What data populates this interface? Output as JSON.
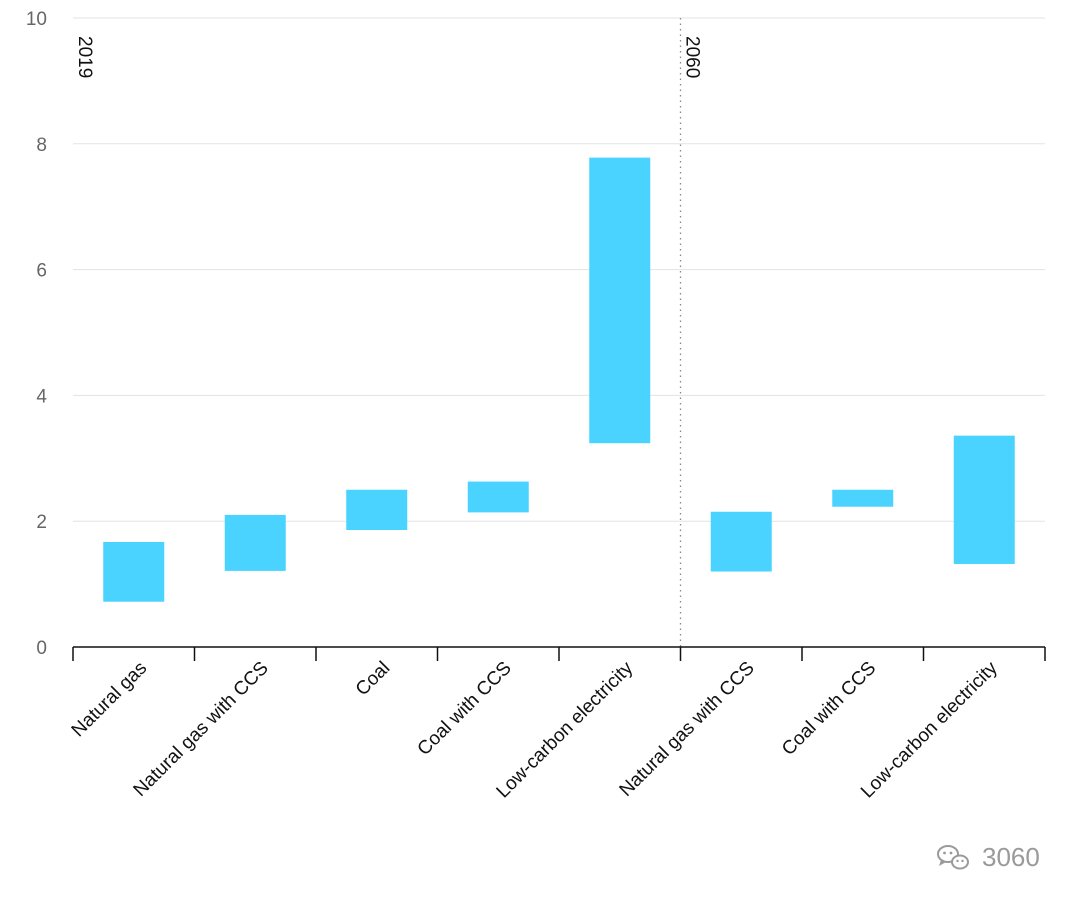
{
  "chart_data": {
    "type": "bar",
    "subtype": "floating-range",
    "categories": [
      "Natural gas",
      "Natural gas with CCS",
      "Coal",
      "Coal with CCS",
      "Low-carbon electricity",
      "Natural gas with CCS",
      "Coal with CCS",
      "Low-carbon electricity"
    ],
    "ranges": [
      [
        0.72,
        1.67
      ],
      [
        1.21,
        2.1
      ],
      [
        1.86,
        2.5
      ],
      [
        2.14,
        2.63
      ],
      [
        3.24,
        7.78
      ],
      [
        1.2,
        2.15
      ],
      [
        2.23,
        2.5
      ],
      [
        1.32,
        3.36
      ]
    ],
    "groups": [
      {
        "label": "2019",
        "start": 0,
        "end": 4
      },
      {
        "label": "2060",
        "start": 5,
        "end": 7
      }
    ],
    "ylim": [
      0,
      10
    ],
    "yticks": [
      0,
      2,
      4,
      6,
      8,
      10
    ],
    "grid": true,
    "bar_color": "#49d3fe",
    "grid_color": "#e3e3e3",
    "xlabel": "",
    "ylabel": ""
  },
  "watermark": {
    "icon": "wechat-icon",
    "text": "3060"
  }
}
